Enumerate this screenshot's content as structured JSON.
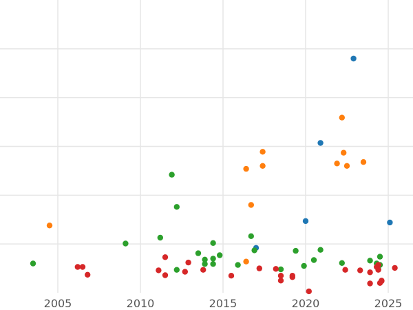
{
  "chart_data": {
    "type": "scatter",
    "title": "",
    "xlabel": "",
    "ylabel": "",
    "x_ticks": [
      2005,
      2010,
      2015,
      2020,
      2025
    ],
    "xlim": [
      2001.5,
      2026.5
    ],
    "ylim": [
      0,
      6
    ],
    "y_gridlines": [
      1,
      2,
      3,
      4,
      5
    ],
    "x_grid": true,
    "legend": "none",
    "series": [
      {
        "color": "#1f77b4",
        "points": [
          [
            2022.9,
            4.8
          ],
          [
            2020.9,
            3.07
          ],
          [
            2020.0,
            1.47
          ],
          [
            2025.1,
            1.44
          ],
          [
            2017.0,
            0.92
          ]
        ]
      },
      {
        "color": "#ff7f0e",
        "points": [
          [
            2004.5,
            1.38
          ],
          [
            2022.2,
            3.59
          ],
          [
            2017.4,
            2.89
          ],
          [
            2022.3,
            2.87
          ],
          [
            2021.9,
            2.65
          ],
          [
            2023.5,
            2.68
          ],
          [
            2017.4,
            2.6
          ],
          [
            2022.5,
            2.6
          ],
          [
            2016.4,
            2.54
          ],
          [
            2016.7,
            1.8
          ],
          [
            2016.4,
            0.64
          ]
        ]
      },
      {
        "color": "#2ca02c",
        "points": [
          [
            2003.5,
            0.6
          ],
          [
            2009.1,
            1.01
          ],
          [
            2011.2,
            1.13
          ],
          [
            2011.9,
            2.42
          ],
          [
            2012.2,
            1.76
          ],
          [
            2012.2,
            0.47
          ],
          [
            2013.5,
            0.81
          ],
          [
            2013.9,
            0.68
          ],
          [
            2013.9,
            0.59
          ],
          [
            2014.4,
            1.02
          ],
          [
            2014.4,
            0.7
          ],
          [
            2014.4,
            0.59
          ],
          [
            2014.8,
            0.77
          ],
          [
            2015.9,
            0.57
          ],
          [
            2016.7,
            1.16
          ],
          [
            2016.9,
            0.87
          ],
          [
            2018.5,
            0.48
          ],
          [
            2019.4,
            0.86
          ],
          [
            2019.9,
            0.55
          ],
          [
            2020.5,
            0.67
          ],
          [
            2020.9,
            0.88
          ],
          [
            2022.2,
            0.61
          ],
          [
            2023.9,
            0.66
          ],
          [
            2024.3,
            0.6
          ],
          [
            2024.5,
            0.74
          ],
          [
            2024.5,
            0.57
          ],
          [
            2024.4,
            0.48
          ]
        ]
      },
      {
        "color": "#d62728",
        "points": [
          [
            2006.2,
            0.53
          ],
          [
            2006.5,
            0.53
          ],
          [
            2006.8,
            0.37
          ],
          [
            2011.1,
            0.46
          ],
          [
            2011.5,
            0.36
          ],
          [
            2011.5,
            0.73
          ],
          [
            2012.7,
            0.43
          ],
          [
            2012.9,
            0.62
          ],
          [
            2013.8,
            0.47
          ],
          [
            2015.5,
            0.35
          ],
          [
            2017.2,
            0.5
          ],
          [
            2018.2,
            0.49
          ],
          [
            2018.5,
            0.35
          ],
          [
            2018.5,
            0.25
          ],
          [
            2019.2,
            0.35
          ],
          [
            2019.2,
            0.32
          ],
          [
            2020.2,
            0.03
          ],
          [
            2022.4,
            0.47
          ],
          [
            2023.3,
            0.46
          ],
          [
            2023.9,
            0.42
          ],
          [
            2023.9,
            0.19
          ],
          [
            2024.3,
            0.53
          ],
          [
            2024.4,
            0.47
          ],
          [
            2024.6,
            0.24
          ],
          [
            2024.5,
            0.2
          ],
          [
            2024.6,
            0.25
          ],
          [
            2025.4,
            0.51
          ],
          [
            2024.4,
            0.57
          ]
        ]
      }
    ]
  }
}
